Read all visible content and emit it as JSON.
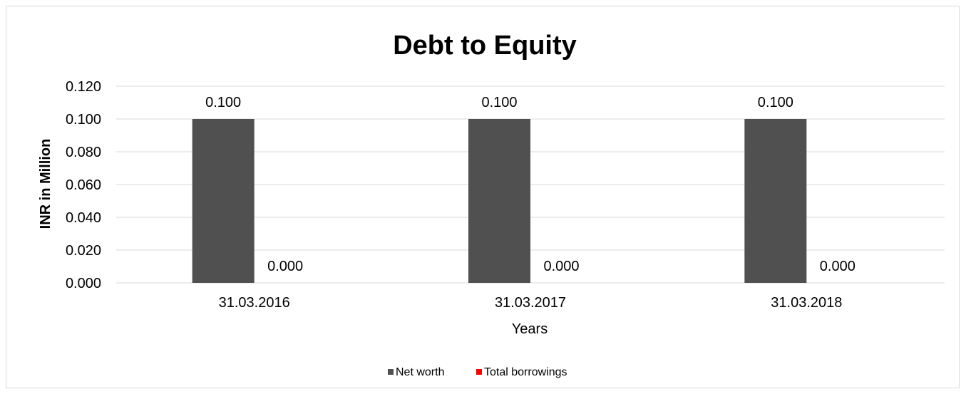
{
  "chart_data": {
    "type": "bar",
    "title": "Debt to Equity",
    "xlabel": "Years",
    "ylabel": "INR in Million",
    "categories": [
      "31.03.2016",
      "31.03.2017",
      "31.03.2018"
    ],
    "series": [
      {
        "name": "Net worth",
        "values": [
          0.1,
          0.1,
          0.1
        ],
        "color": "#505050",
        "labels": [
          "0.100",
          "0.100",
          "0.100"
        ]
      },
      {
        "name": "Total borrowings",
        "values": [
          0.0,
          0.0,
          0.0
        ],
        "color": "#ff0000",
        "labels": [
          "0.000",
          "0.000",
          "0.000"
        ]
      }
    ],
    "ylim": [
      0,
      0.12
    ],
    "yticks": [
      "0.000",
      "0.020",
      "0.040",
      "0.060",
      "0.080",
      "0.100",
      "0.120"
    ],
    "grid": true,
    "legend_position": "bottom",
    "gridline_color": "#d9d9d9"
  }
}
